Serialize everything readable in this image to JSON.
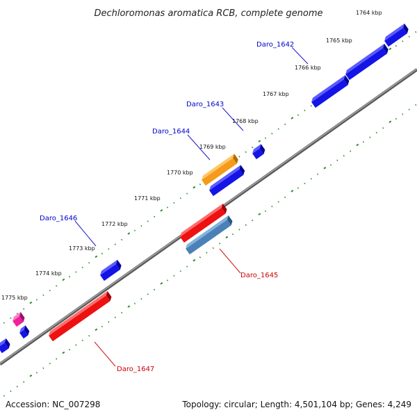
{
  "title": "Dechloromonas aromatica RCB, complete genome",
  "footer": {
    "accession": "Accession: NC_007298",
    "summary": "Topology: circular; Length: 4,501,104 bp; Genes: 4,249"
  },
  "colors": {
    "backbone": "#888888",
    "tick": "#2e8b2e",
    "forward_gene": "#1010e0",
    "reverse_gene": "#ee1111",
    "orange_gene": "#f5a020",
    "steelblue_gene": "#4a82b8",
    "pink_gene": "#ee2299",
    "forward_label": "#0000cc",
    "reverse_label": "#cc0000"
  },
  "scale_labels": [
    {
      "text": "1764 kbp"
    },
    {
      "text": "1765 kbp"
    },
    {
      "text": "1766 kbp"
    },
    {
      "text": "1767 kbp"
    },
    {
      "text": "1768 kbp"
    },
    {
      "text": "1769 kbp"
    },
    {
      "text": "1770 kbp"
    },
    {
      "text": "1771 kbp"
    },
    {
      "text": "1772 kbp"
    },
    {
      "text": "1773 kbp"
    },
    {
      "text": "1774 kbp"
    },
    {
      "text": "1775 kbp"
    }
  ],
  "gene_labels": [
    {
      "text": "Daro_1642",
      "strand": "forward"
    },
    {
      "text": "Daro_1643",
      "strand": "forward"
    },
    {
      "text": "Daro_1644",
      "strand": "forward"
    },
    {
      "text": "Daro_1646",
      "strand": "forward"
    },
    {
      "text": "Daro_1645",
      "strand": "reverse"
    },
    {
      "text": "Daro_1647",
      "strand": "reverse"
    }
  ]
}
